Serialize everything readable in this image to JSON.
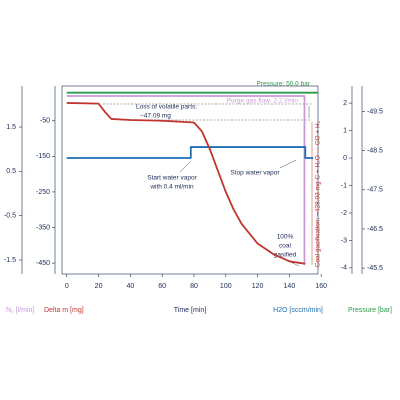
{
  "chart_data": {
    "type": "line",
    "xlim": [
      -3,
      158
    ],
    "xticks": [
      0,
      20,
      40,
      60,
      80,
      100,
      120,
      140,
      160
    ],
    "ylim": [
      -475,
      42
    ],
    "yticks": [
      -50,
      -150,
      -250,
      -350,
      -450
    ],
    "y2lim": [
      -4.15,
      2.55
    ],
    "y2ticks": [
      2,
      1,
      0,
      -1,
      -2,
      -3,
      -4
    ],
    "y3lim": [
      -1.77,
      2.38
    ],
    "y3ticks": [
      1.5,
      0.5,
      -0.5,
      -1.5
    ],
    "y4lim": [
      -45.4,
      -50.1
    ],
    "y4ticks": [
      -49.5,
      -48.5,
      -47.5,
      -46.5,
      -45.5
    ],
    "xlabel": "Time [min]",
    "ylabel": "Delta m [mg]",
    "y2label": "H2O [sccm/min]",
    "y3label": "N₂ [l/min]",
    "y4label": "Pressure [bar]",
    "series": [
      {
        "name": "Pressure",
        "color": "#2a9d4a",
        "axis": "y4",
        "x": [
          0,
          158
        ],
        "values": [
          -49.98,
          -49.98
        ]
      },
      {
        "name": "N2",
        "color": "#c99ad8",
        "axis": "y3",
        "x": [
          0,
          149.5,
          149.5
        ],
        "values": [
          2.2,
          2.2,
          -1.6
        ]
      },
      {
        "name": "H2O",
        "color": "#1f6fb5",
        "axis": "y2",
        "x": [
          0,
          78,
          78,
          150,
          150,
          155
        ],
        "values": [
          0,
          0,
          0.4,
          0.4,
          0,
          0
        ]
      },
      {
        "name": "Delta m",
        "color": "#c0352f",
        "axis": "y",
        "x": [
          0,
          20,
          24,
          28,
          40,
          60,
          80,
          85,
          90,
          95,
          100,
          105,
          110,
          120,
          130,
          140,
          150
        ],
        "values": [
          0,
          -2,
          -25,
          -45,
          -48,
          -50,
          -55,
          -80,
          -130,
          -190,
          -250,
          -300,
          -340,
          -395,
          -425,
          -445,
          -452
        ]
      }
    ],
    "annotations": {
      "pressure": "Pressure: 50.0 bar",
      "purge": "Purge gas flow: 2.2 l/min",
      "loss_1": "Loss of volatile parts:",
      "loss_2": "−47.09 mg",
      "start_1": "Start water vapor",
      "start_2": "with 0.4 ml/min",
      "stop": "Stop water vapor",
      "gasified_1": "100%",
      "gasified_2": "coal",
      "gasified_3": "gasified",
      "gasification": "Coal gasification: −428.03 mg C + H₂O → CO + H₂"
    }
  }
}
